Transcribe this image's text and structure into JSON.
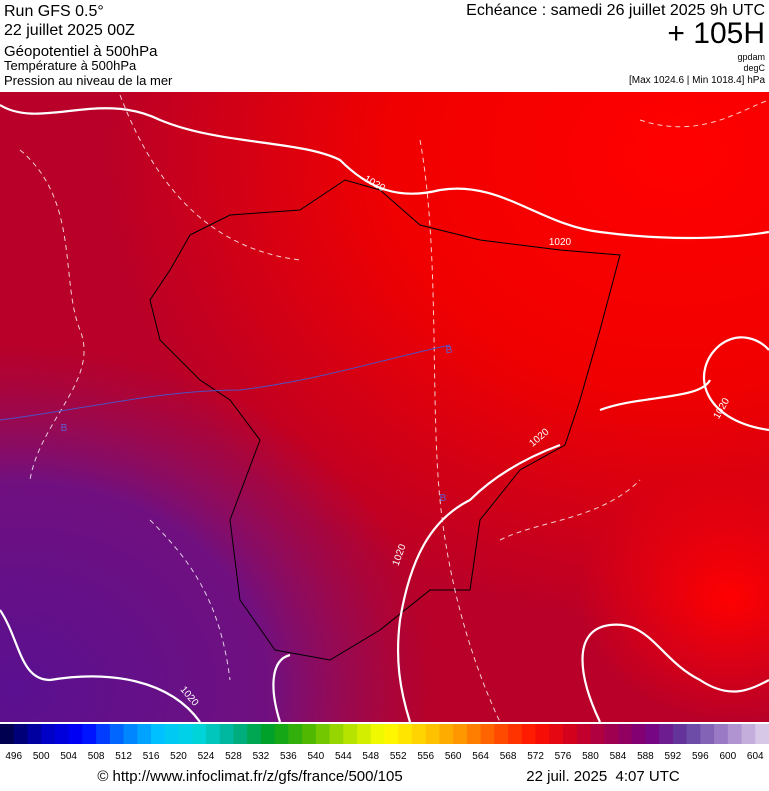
{
  "header": {
    "run": "Run GFS 0.5°",
    "date": "22 juillet 2025 00Z",
    "fields": [
      "Géopotentiel à 500hPa",
      "Température à 500hPa",
      "Pression au niveau de la mer"
    ],
    "echeance": "Echéance : samedi 26 juillet 2025 9h UTC",
    "lead": "+ 105H",
    "units": [
      "gpdam",
      "degC",
      "[Max 1024.6 | Min 1018.4] hPa"
    ]
  },
  "map": {
    "isobar_labels": [
      "1020",
      "1020",
      "1020",
      "1020",
      "1020",
      "1020"
    ],
    "low_labels": [
      "B",
      "B",
      "B"
    ]
  },
  "colorbar": {
    "labels": [
      496,
      500,
      504,
      508,
      512,
      516,
      520,
      524,
      528,
      532,
      536,
      540,
      544,
      548,
      552,
      556,
      560,
      564,
      568,
      572,
      576,
      580,
      584,
      588,
      592,
      596,
      600,
      604
    ],
    "colors": [
      "#000050",
      "#0000c0",
      "#0000ff",
      "#0070ff",
      "#00c0ff",
      "#00d8e0",
      "#00b090",
      "#00a020",
      "#50b800",
      "#b0e000",
      "#ffff00",
      "#ffd000",
      "#ff9800",
      "#ff5000",
      "#ff1000",
      "#d00020",
      "#a00050",
      "#780080",
      "#6040a0",
      "#a080c8",
      "#d8c8e8"
    ]
  },
  "footer": {
    "url": "© http://www.infoclimat.fr/z/gfs/france/500/105",
    "time": "22 juil. 2025  4:07 UTC"
  }
}
